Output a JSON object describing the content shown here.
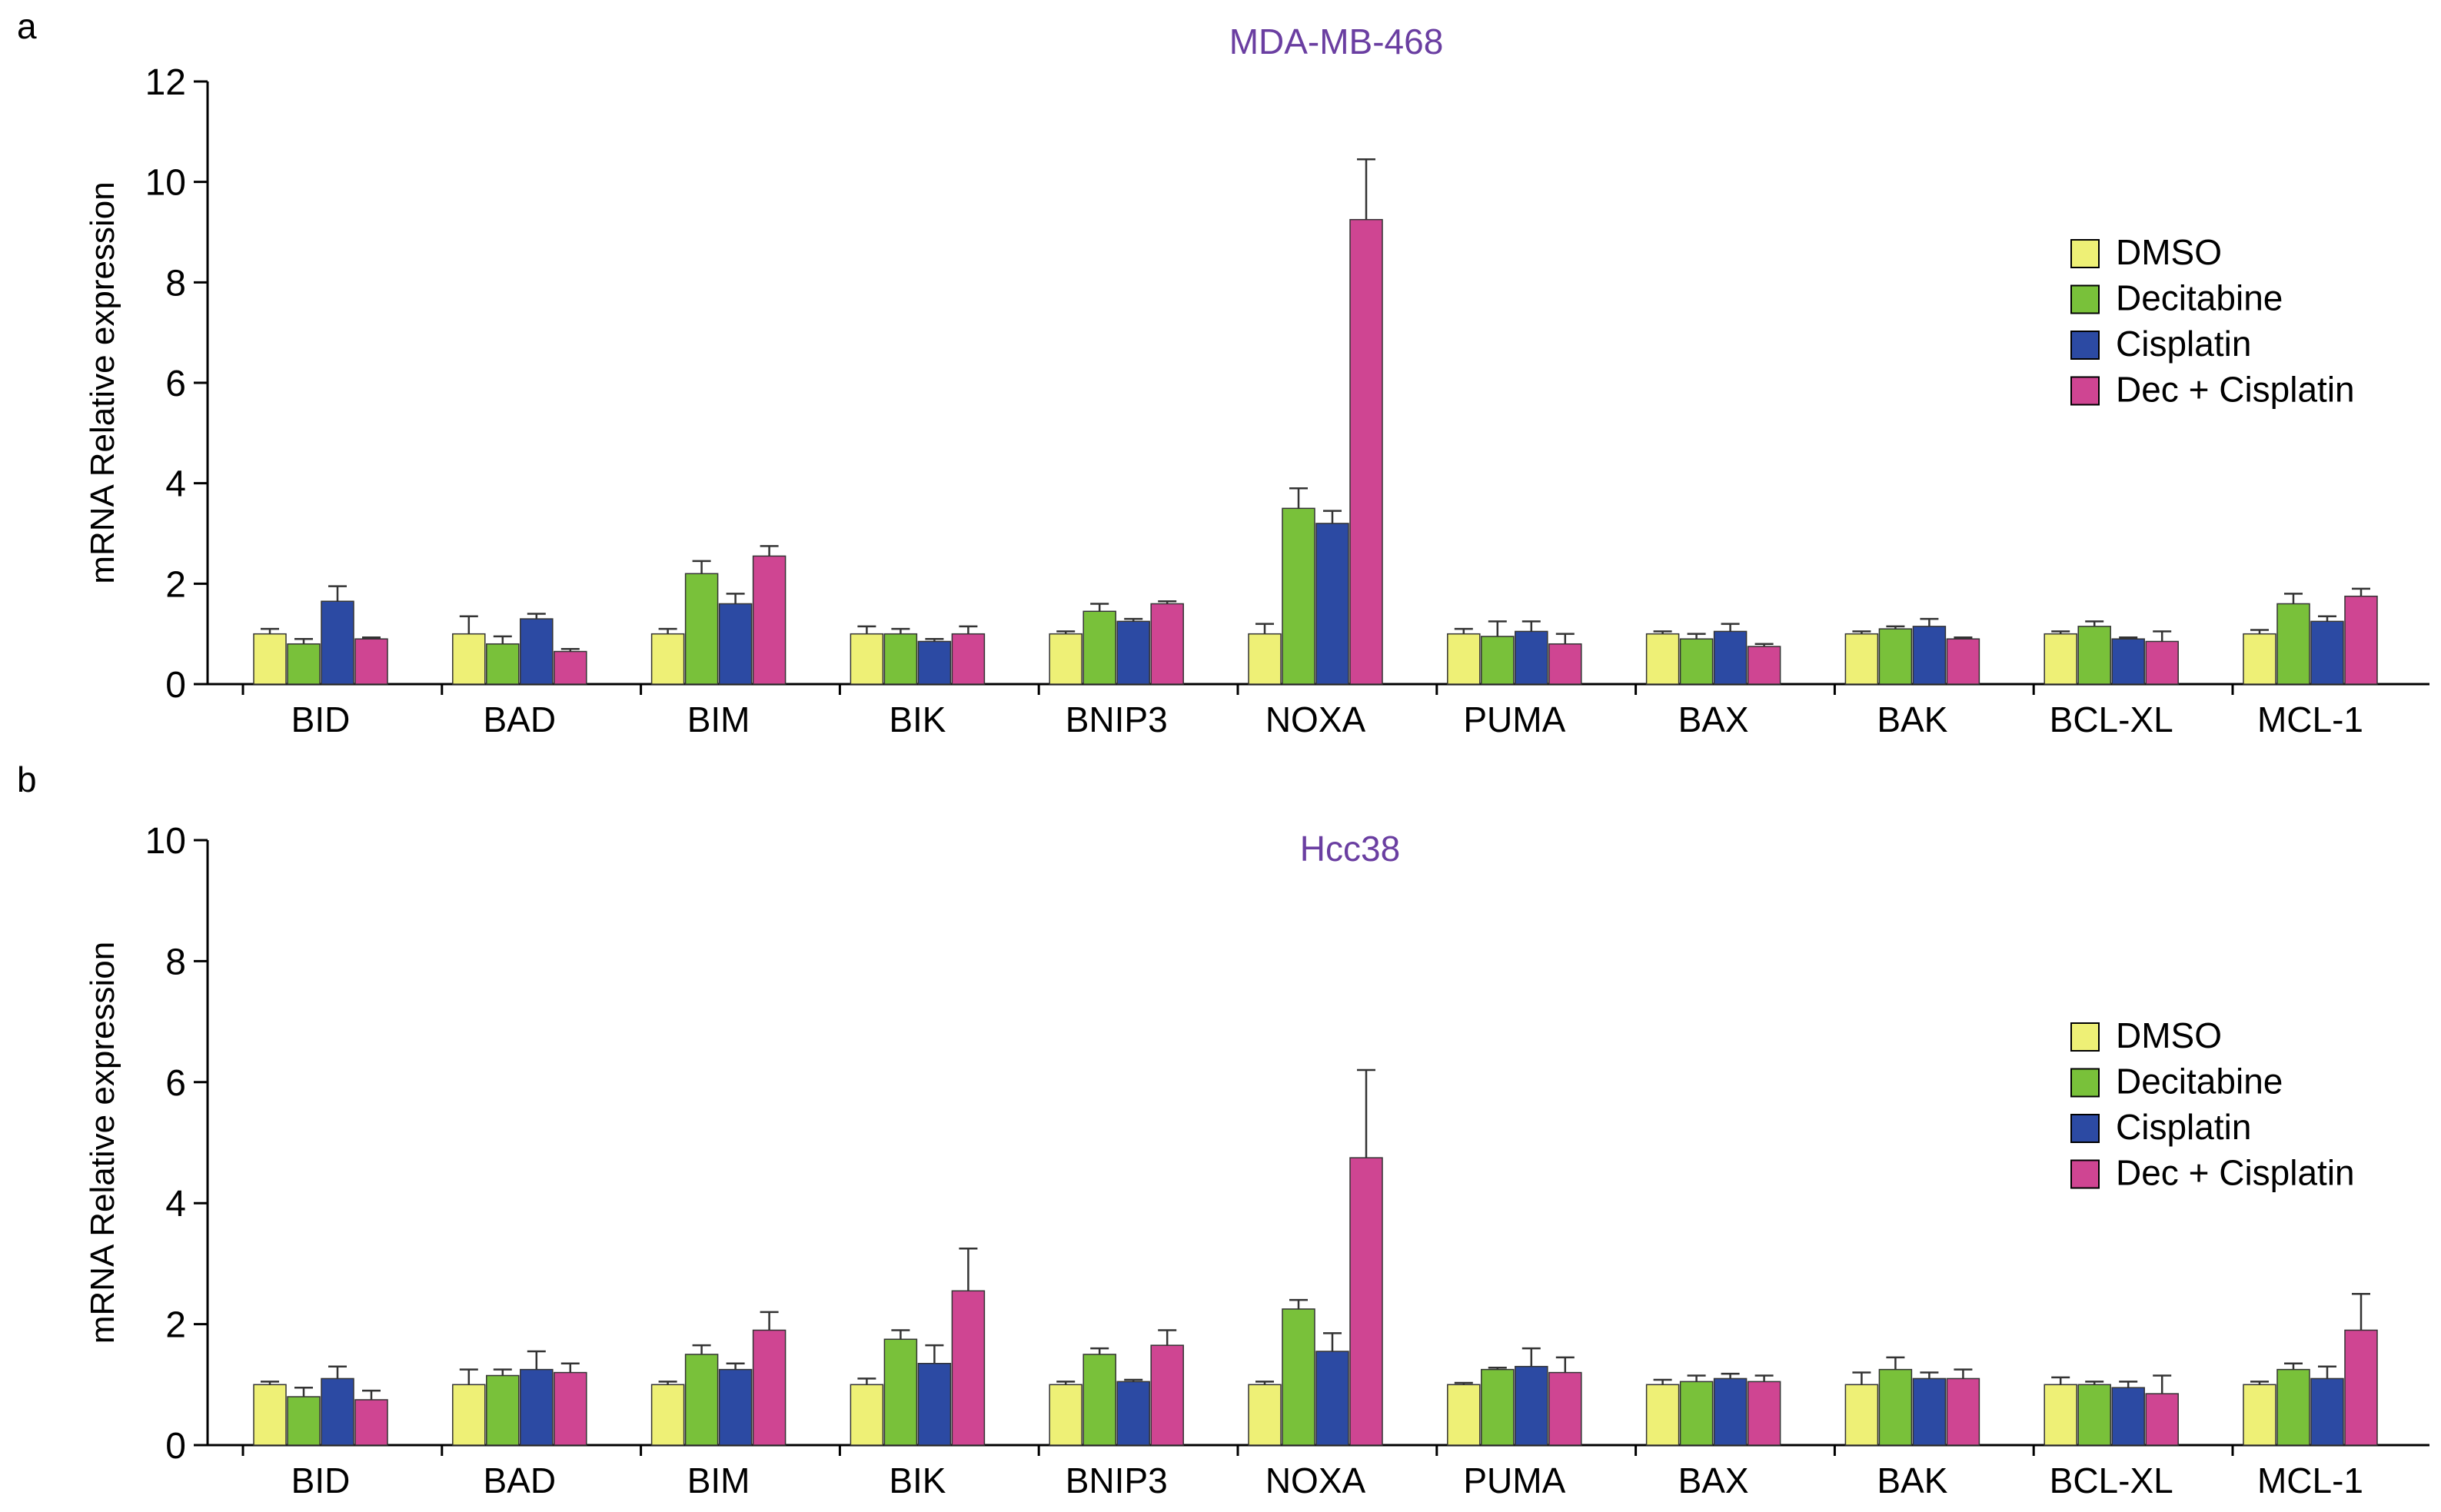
{
  "figure": {
    "panel_labels": [
      "a",
      "b"
    ]
  },
  "colors": {
    "DMSO": "#eef076",
    "Decitabine": "#79c13a",
    "Cisplatin": "#2c4aa3",
    "Dec + Cisplatin": "#cf4592",
    "title": "#6a3ea1",
    "axis": "#000000"
  },
  "chart_data": [
    {
      "type": "bar",
      "panel": "a",
      "title": "MDA-MB-468",
      "xlabel": "",
      "ylabel": "mRNA Relative expression",
      "ylim": [
        0,
        12
      ],
      "yticks": [
        0,
        2,
        4,
        6,
        8,
        10,
        12
      ],
      "grid": false,
      "legend": "right",
      "categories": [
        "BID",
        "BAD",
        "BIM",
        "BIK",
        "BNIP3",
        "NOXA",
        "PUMA",
        "BAX",
        "BAK",
        "BCL-XL",
        "MCL-1"
      ],
      "series": [
        {
          "name": "DMSO",
          "values": [
            1.0,
            1.0,
            1.0,
            1.0,
            1.0,
            1.0,
            1.0,
            1.0,
            1.0,
            1.0,
            1.0
          ],
          "errors": [
            0.1,
            0.35,
            0.1,
            0.15,
            0.05,
            0.2,
            0.1,
            0.05,
            0.05,
            0.05,
            0.08
          ]
        },
        {
          "name": "Decitabine",
          "values": [
            0.8,
            0.8,
            2.2,
            1.0,
            1.45,
            3.5,
            0.95,
            0.9,
            1.1,
            1.15,
            1.6
          ],
          "errors": [
            0.1,
            0.15,
            0.25,
            0.1,
            0.15,
            0.4,
            0.3,
            0.1,
            0.05,
            0.1,
            0.2
          ]
        },
        {
          "name": "Cisplatin",
          "values": [
            1.65,
            1.3,
            1.6,
            0.85,
            1.25,
            3.2,
            1.05,
            1.05,
            1.15,
            0.9,
            1.25
          ],
          "errors": [
            0.3,
            0.1,
            0.2,
            0.05,
            0.05,
            0.25,
            0.2,
            0.15,
            0.15,
            0.03,
            0.1
          ]
        },
        {
          "name": "Dec + Cisplatin",
          "values": [
            0.9,
            0.65,
            2.55,
            1.0,
            1.6,
            9.25,
            0.8,
            0.75,
            0.9,
            0.85,
            1.75
          ],
          "errors": [
            0.03,
            0.05,
            0.2,
            0.15,
            0.05,
            1.2,
            0.2,
            0.05,
            0.03,
            0.2,
            0.15
          ]
        }
      ]
    },
    {
      "type": "bar",
      "panel": "b",
      "title": "Hcc38",
      "xlabel": "",
      "ylabel": "mRNA Relative expression",
      "ylim": [
        0,
        10
      ],
      "yticks": [
        0,
        2,
        4,
        6,
        8,
        10
      ],
      "grid": false,
      "legend": "right",
      "categories": [
        "BID",
        "BAD",
        "BIM",
        "BIK",
        "BNIP3",
        "NOXA",
        "PUMA",
        "BAX",
        "BAK",
        "BCL-XL",
        "MCL-1"
      ],
      "series": [
        {
          "name": "DMSO",
          "values": [
            1.0,
            1.0,
            1.0,
            1.0,
            1.0,
            1.0,
            1.0,
            1.0,
            1.0,
            1.0,
            1.0
          ],
          "errors": [
            0.05,
            0.25,
            0.05,
            0.1,
            0.05,
            0.05,
            0.03,
            0.08,
            0.2,
            0.12,
            0.05
          ]
        },
        {
          "name": "Decitabine",
          "values": [
            0.8,
            1.15,
            1.5,
            1.75,
            1.5,
            2.25,
            1.25,
            1.05,
            1.25,
            1.0,
            1.25
          ],
          "errors": [
            0.15,
            0.1,
            0.15,
            0.15,
            0.1,
            0.15,
            0.03,
            0.1,
            0.2,
            0.05,
            0.1
          ]
        },
        {
          "name": "Cisplatin",
          "values": [
            1.1,
            1.25,
            1.25,
            1.35,
            1.05,
            1.55,
            1.3,
            1.1,
            1.1,
            0.95,
            1.1
          ],
          "errors": [
            0.2,
            0.3,
            0.1,
            0.3,
            0.03,
            0.3,
            0.3,
            0.08,
            0.1,
            0.1,
            0.2
          ]
        },
        {
          "name": "Dec + Cisplatin",
          "values": [
            0.75,
            1.2,
            1.9,
            2.55,
            1.65,
            4.75,
            1.2,
            1.05,
            1.1,
            0.85,
            1.9
          ],
          "errors": [
            0.15,
            0.15,
            0.3,
            0.7,
            0.25,
            1.45,
            0.25,
            0.1,
            0.15,
            0.3,
            0.6
          ]
        }
      ]
    }
  ]
}
